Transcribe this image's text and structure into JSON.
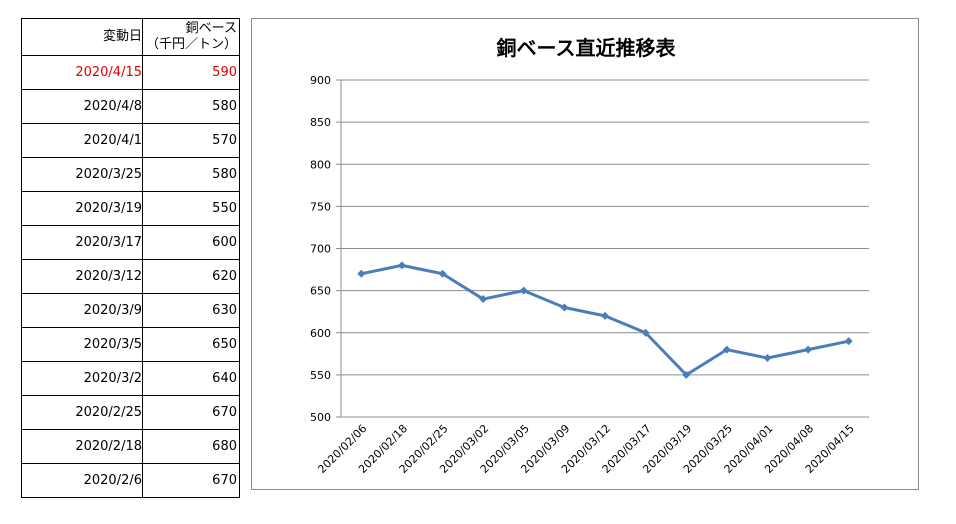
{
  "table": {
    "headers": {
      "date": "変動日",
      "price_line1": "銅ベース",
      "price_line2": "（千円／トン）"
    },
    "rows": [
      {
        "date": "2020/4/15",
        "value": "590"
      },
      {
        "date": "2020/4/8",
        "value": "580"
      },
      {
        "date": "2020/4/1",
        "value": "570"
      },
      {
        "date": "2020/3/25",
        "value": "580"
      },
      {
        "date": "2020/3/19",
        "value": "550"
      },
      {
        "date": "2020/3/17",
        "value": "600"
      },
      {
        "date": "2020/3/12",
        "value": "620"
      },
      {
        "date": "2020/3/9",
        "value": "630"
      },
      {
        "date": "2020/3/5",
        "value": "650"
      },
      {
        "date": "2020/3/2",
        "value": "640"
      },
      {
        "date": "2020/2/25",
        "value": "670"
      },
      {
        "date": "2020/2/18",
        "value": "680"
      },
      {
        "date": "2020/2/6",
        "value": "670"
      }
    ],
    "highlight_color": "#e00000"
  },
  "chart_data": {
    "type": "line",
    "title": "銅ベース直近推移表",
    "categories": [
      "2020/02/06",
      "2020/02/18",
      "2020/02/25",
      "2020/03/02",
      "2020/03/05",
      "2020/03/09",
      "2020/03/12",
      "2020/03/17",
      "2020/03/19",
      "2020/03/25",
      "2020/04/01",
      "2020/04/08",
      "2020/04/15"
    ],
    "values": [
      670,
      680,
      670,
      640,
      650,
      630,
      620,
      600,
      550,
      580,
      570,
      580,
      590
    ],
    "ylim": [
      500,
      900
    ],
    "yticks": [
      500,
      550,
      600,
      650,
      700,
      750,
      800,
      850,
      900
    ],
    "grid": true,
    "legend": "none",
    "line_color": "#4a7ebb"
  }
}
